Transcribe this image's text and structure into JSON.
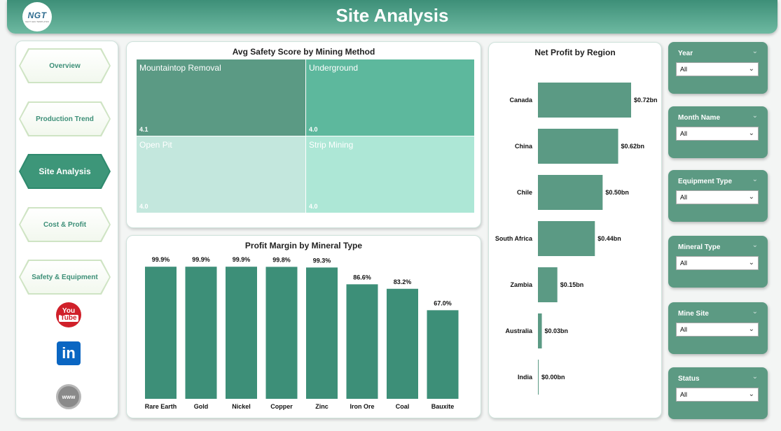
{
  "header": {
    "title": "Site Analysis",
    "logo_text": "NGT",
    "logo_sub": "NEXT GEN TEMPLATES"
  },
  "nav": {
    "items": [
      {
        "label": "Overview",
        "active": false
      },
      {
        "label": "Production Trend",
        "active": false
      },
      {
        "label": "Site Analysis",
        "active": true
      },
      {
        "label": "Cost & Profit",
        "active": false
      },
      {
        "label": "Safety & Equipment",
        "active": false
      }
    ],
    "social": {
      "youtube_top": "You",
      "youtube_bottom": "Tube",
      "linkedin": "in",
      "web": "www"
    }
  },
  "treemap": {
    "title": "Avg Safety Score by Mining Method",
    "cells": [
      {
        "name": "Mountaintop Removal",
        "value": "4.1",
        "color": "#5b9a84",
        "text_color": "#ffffff"
      },
      {
        "name": "Underground",
        "value": "4.0",
        "color": "#5db89d",
        "text_color": "#ffffff"
      },
      {
        "name": "Open Pit",
        "value": "4.0",
        "color": "#c3e7dd",
        "text_color": "#ffffff"
      },
      {
        "name": "Strip Mining",
        "value": "4.0",
        "color": "#ade7d6",
        "text_color": "#ffffff"
      }
    ]
  },
  "chart_data": [
    {
      "type": "bar",
      "title": "Profit Margin by Mineral Type",
      "categories": [
        "Rare Earth",
        "Gold",
        "Nickel",
        "Copper",
        "Zinc",
        "Iron Ore",
        "Coal",
        "Bauxite"
      ],
      "values": [
        99.9,
        99.9,
        99.9,
        99.8,
        99.3,
        86.6,
        83.2,
        67.0
      ],
      "labels": [
        "99.9%",
        "99.9%",
        "99.9%",
        "99.8%",
        "99.3%",
        "86.6%",
        "83.2%",
        "67.0%"
      ],
      "ylim": [
        0,
        100
      ],
      "color": "#3d8f78"
    },
    {
      "type": "bar",
      "orientation": "horizontal",
      "title": "Net Profit by Region",
      "categories": [
        "Canada",
        "China",
        "Chile",
        "South Africa",
        "Zambia",
        "Australia",
        "India"
      ],
      "values": [
        0.72,
        0.62,
        0.5,
        0.44,
        0.15,
        0.03,
        0.0
      ],
      "labels": [
        "$0.72bn",
        "$0.62bn",
        "$0.50bn",
        "$0.44bn",
        "$0.15bn",
        "$0.03bn",
        "$0.00bn"
      ],
      "xlim": [
        0,
        0.72
      ],
      "color": "#5b9a84"
    }
  ],
  "filters": [
    {
      "label": "Year",
      "value": "All"
    },
    {
      "label": "Month Name",
      "value": "All"
    },
    {
      "label": "Equipment Type",
      "value": "All"
    },
    {
      "label": "Mineral Type",
      "value": "All"
    },
    {
      "label": "Mine Site",
      "value": "All"
    },
    {
      "label": "Status",
      "value": "All"
    }
  ]
}
